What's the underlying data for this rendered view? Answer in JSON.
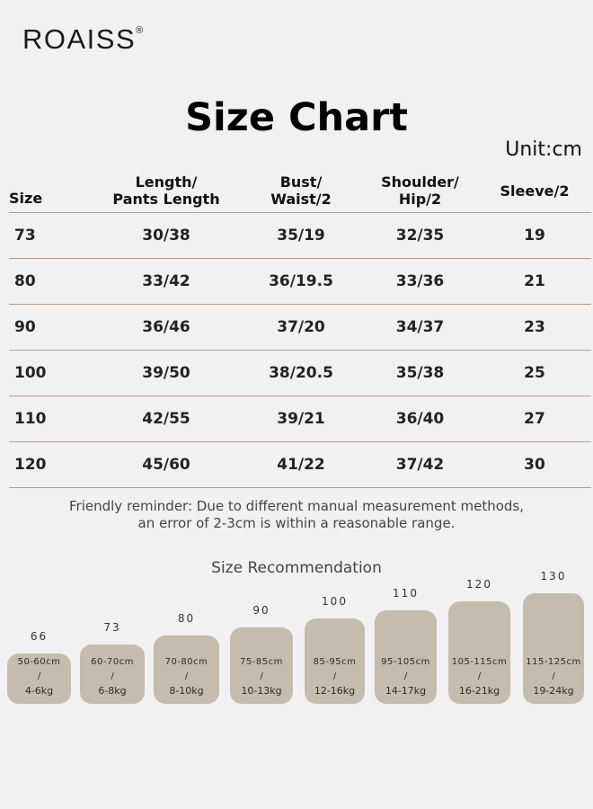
{
  "brand": {
    "name": "ROAISS",
    "mark": "®"
  },
  "title": "Size Chart",
  "unit": "Unit:cm",
  "table": {
    "headers": [
      "Size",
      "Length/\nPants Length",
      "Bust/\nWaist/2",
      "Shoulder/\nHip/2",
      "Sleeve/2"
    ],
    "rows": [
      [
        "73",
        "30/38",
        "35/19",
        "32/35",
        "19"
      ],
      [
        "80",
        "33/42",
        "36/19.5",
        "33/36",
        "21"
      ],
      [
        "90",
        "36/46",
        "37/20",
        "34/37",
        "23"
      ],
      [
        "100",
        "39/50",
        "38/20.5",
        "35/38",
        "25"
      ],
      [
        "110",
        "42/55",
        "39/21",
        "36/40",
        "27"
      ],
      [
        "120",
        "45/60",
        "41/22",
        "37/42",
        "30"
      ]
    ]
  },
  "reminder": {
    "line1": "Friendly reminder: Due to different manual measurement methods,",
    "line2": "an error of 2-3cm is within a reasonable range."
  },
  "recommendation": {
    "title": "Size Recommendation",
    "items": [
      {
        "size": "66",
        "height": "50-60cm",
        "sep": "/",
        "weight": "4-6kg"
      },
      {
        "size": "73",
        "height": "60-70cm",
        "sep": "/",
        "weight": "6-8kg"
      },
      {
        "size": "80",
        "height": "70-80cm",
        "sep": "/",
        "weight": "8-10kg"
      },
      {
        "size": "90",
        "height": "75-85cm",
        "sep": "/",
        "weight": "10-13kg"
      },
      {
        "size": "100",
        "height": "85-95cm",
        "sep": "/",
        "weight": "12-16kg"
      },
      {
        "size": "110",
        "height": "95-105cm",
        "sep": "/",
        "weight": "14-17kg"
      },
      {
        "size": "120",
        "height": "105-115cm",
        "sep": "/",
        "weight": "16-21kg"
      },
      {
        "size": "130",
        "height": "115-125cm",
        "sep": "/",
        "weight": "19-24kg"
      }
    ]
  },
  "colors": {
    "background": "#f2f1f1",
    "box": "#c5bcad",
    "rule": "#b09c82"
  }
}
